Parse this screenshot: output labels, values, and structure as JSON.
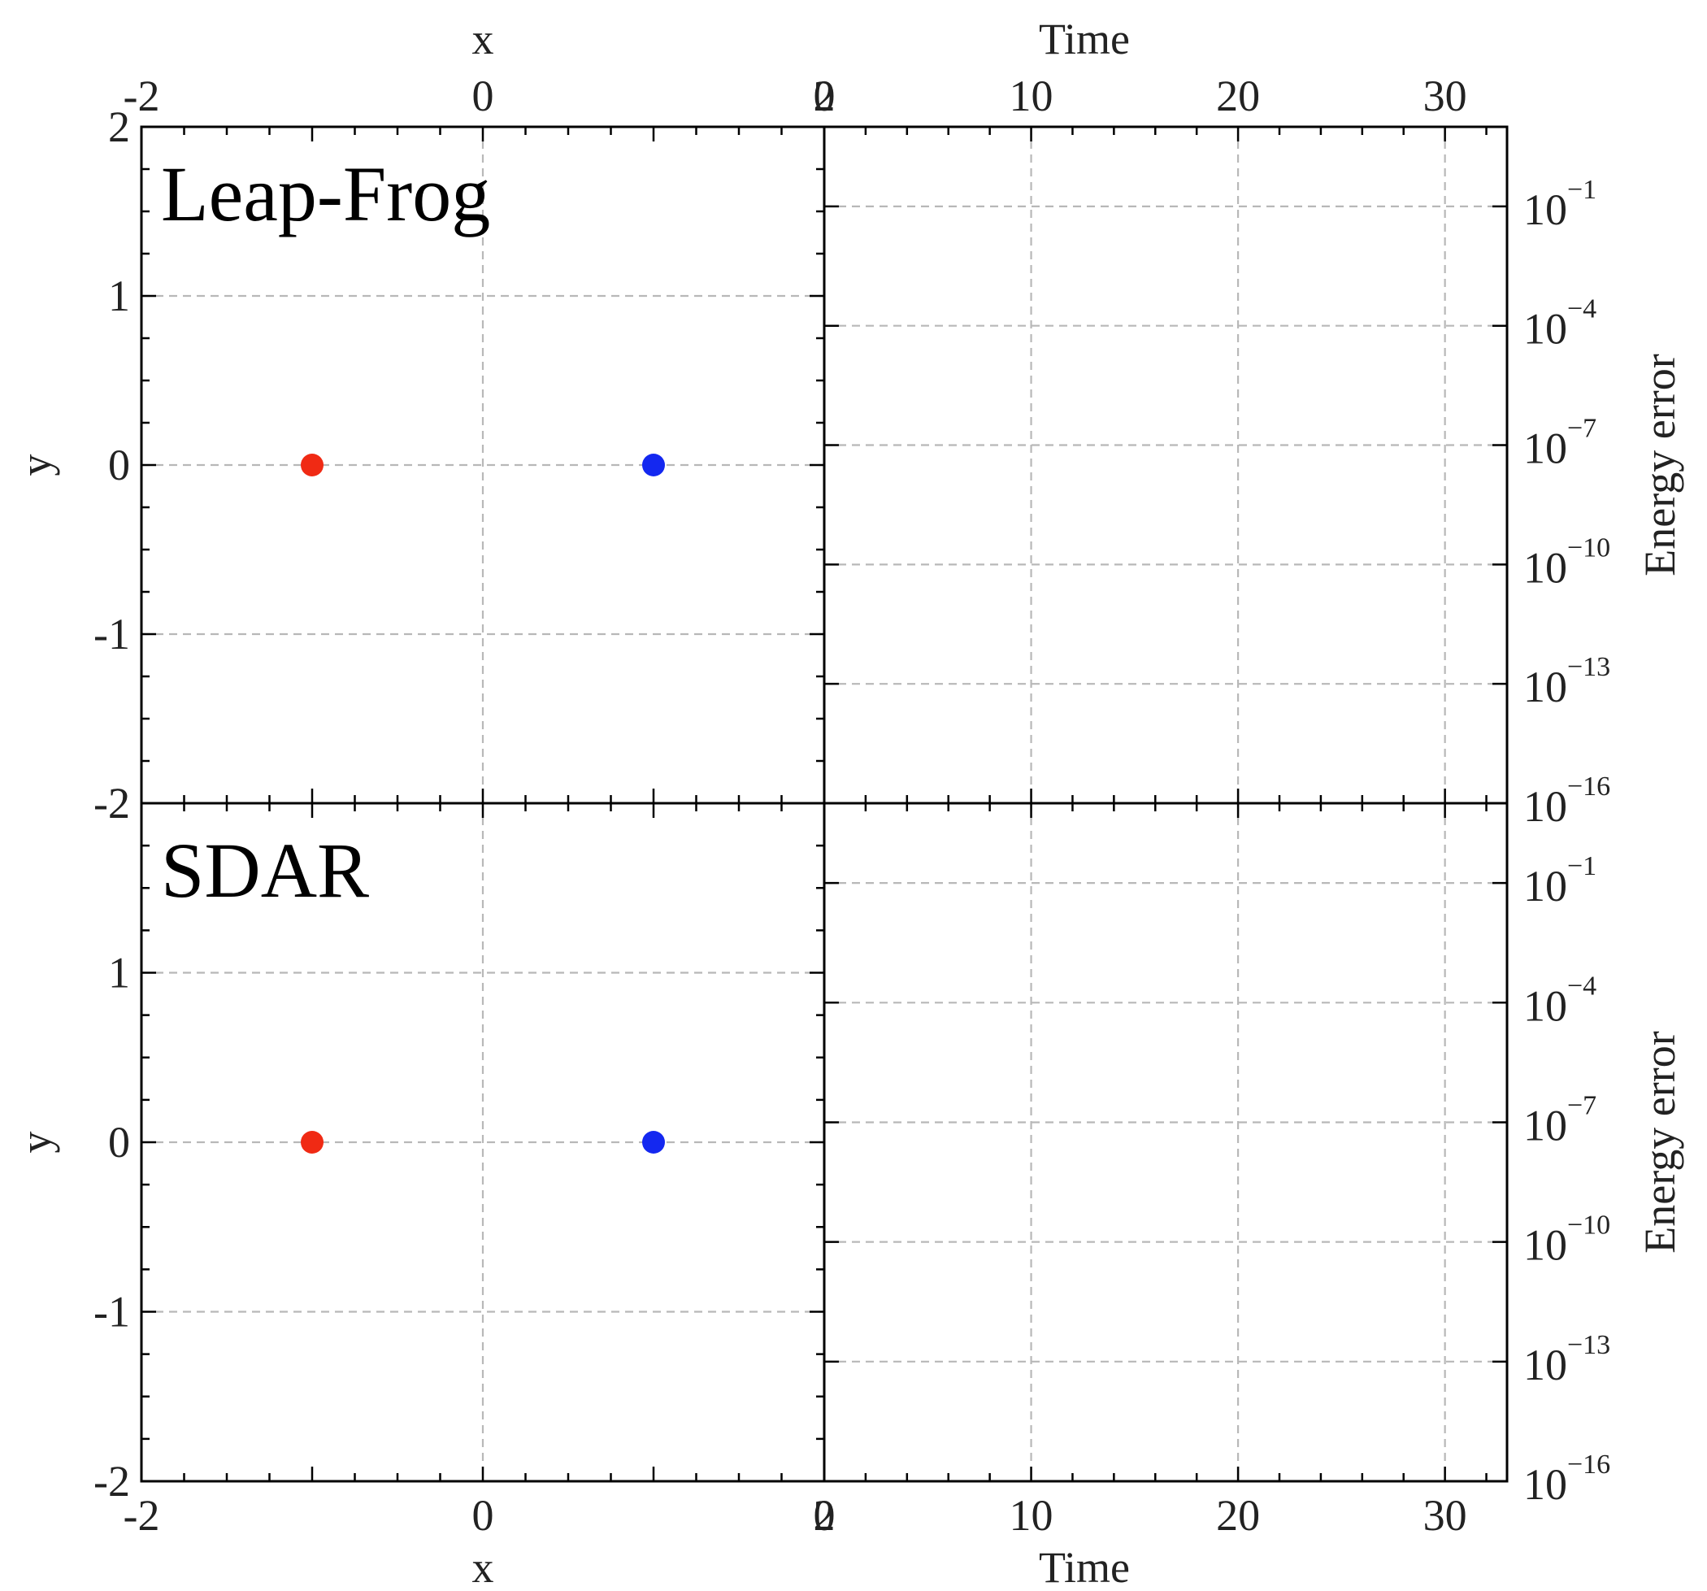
{
  "chart_data": [
    {
      "type": "scatter",
      "panel_label": "Leap-Frog",
      "xlabel": "x",
      "ylabel": "y",
      "xlim": [
        -2,
        2
      ],
      "ylim": [
        -2,
        2
      ],
      "x_ticks": [
        "-2",
        "0",
        "2"
      ],
      "y_ticks": [
        "-2",
        "-1",
        "0",
        "1",
        "2"
      ],
      "x_axis_position": "top",
      "grid": true,
      "points": [
        {
          "x": -1.0,
          "y": 0.0,
          "color": "#f02a14"
        },
        {
          "x": 1.0,
          "y": 0.0,
          "color": "#1428f0"
        }
      ]
    },
    {
      "type": "line",
      "xlabel": "Time",
      "ylabel": "Energy error",
      "xlim": [
        0,
        33
      ],
      "y_scale": "log",
      "ylim_exponents": [
        -16,
        1
      ],
      "x_ticks": [
        "0",
        "10",
        "20",
        "30"
      ],
      "y_ticks": [
        {
          "base": "10",
          "exp": "−1"
        },
        {
          "base": "10",
          "exp": "−4"
        },
        {
          "base": "10",
          "exp": "−7"
        },
        {
          "base": "10",
          "exp": "−10"
        },
        {
          "base": "10",
          "exp": "−13"
        },
        {
          "base": "10",
          "exp": "−16"
        }
      ],
      "x_axis_position": "top",
      "y_axis_position": "right",
      "grid": true,
      "series": []
    },
    {
      "type": "scatter",
      "panel_label": "SDAR",
      "xlabel": "x",
      "ylabel": "y",
      "xlim": [
        -2,
        2
      ],
      "ylim": [
        -2,
        2
      ],
      "x_ticks": [
        "-2",
        "0",
        "2"
      ],
      "y_ticks": [
        "-2",
        "-1",
        "0",
        "1",
        "2"
      ],
      "x_axis_position": "bottom",
      "grid": true,
      "points": [
        {
          "x": -1.0,
          "y": 0.0,
          "color": "#f02a14"
        },
        {
          "x": 1.0,
          "y": 0.0,
          "color": "#1428f0"
        }
      ]
    },
    {
      "type": "line",
      "xlabel": "Time",
      "ylabel": "Energy error",
      "xlim": [
        0,
        33
      ],
      "y_scale": "log",
      "ylim_exponents": [
        -16,
        1
      ],
      "x_ticks": [
        "0",
        "10",
        "20",
        "30"
      ],
      "y_ticks": [
        {
          "base": "10",
          "exp": "−1"
        },
        {
          "base": "10",
          "exp": "−4"
        },
        {
          "base": "10",
          "exp": "−7"
        },
        {
          "base": "10",
          "exp": "−10"
        },
        {
          "base": "10",
          "exp": "−13"
        },
        {
          "base": "10",
          "exp": "−16"
        }
      ],
      "x_axis_position": "bottom",
      "y_axis_position": "right",
      "grid": true,
      "series": []
    }
  ]
}
